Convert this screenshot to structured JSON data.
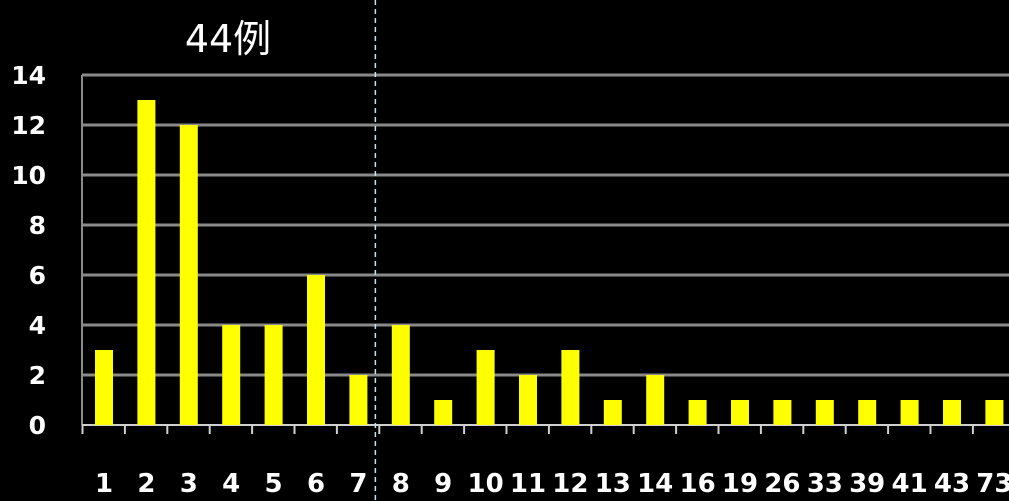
{
  "chart_data": {
    "type": "bar",
    "title": "44例",
    "xlabel": "",
    "ylabel": "",
    "categories": [
      "1",
      "2",
      "3",
      "4",
      "5",
      "6",
      "7",
      "8",
      "9",
      "10",
      "11",
      "12",
      "13",
      "14",
      "16",
      "19",
      "26",
      "33",
      "39",
      "41",
      "43",
      "73"
    ],
    "values": [
      3,
      13,
      12,
      4,
      4,
      6,
      2,
      4,
      1,
      3,
      2,
      3,
      1,
      2,
      1,
      1,
      1,
      1,
      1,
      1,
      1,
      1
    ],
    "ylim": [
      0,
      14
    ],
    "yticks": [
      "0",
      "2",
      "4",
      "6",
      "8",
      "10",
      "12",
      "14"
    ],
    "grid": true,
    "legend": "none",
    "divider_after_category": "7"
  },
  "colors": {
    "background": "#000000",
    "bar": "#ffff00",
    "grid": "#8a8a8a",
    "text": "#ffffff",
    "divider": "#bfe6ea"
  }
}
